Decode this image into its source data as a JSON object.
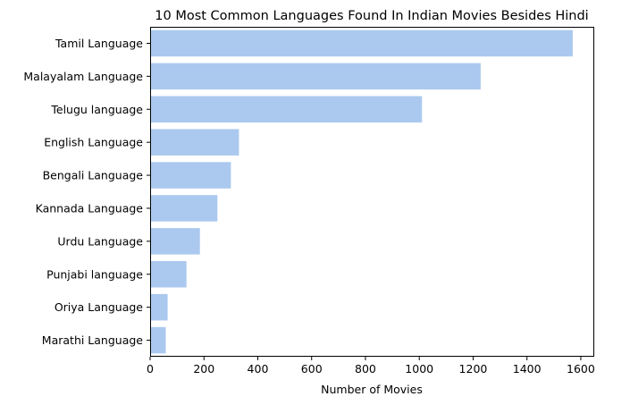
{
  "chart_data": {
    "type": "bar",
    "orientation": "horizontal",
    "title": "10 Most Common Languages Found In Indian Movies Besides Hindi",
    "xlabel": "Number of Movies",
    "ylabel": "",
    "categories": [
      "Tamil Language",
      "Malayalam Language",
      "Telugu language",
      "English Language",
      "Bengali Language",
      "Kannada Language",
      "Urdu Language",
      "Punjabi language",
      "Oriya Language",
      "Marathi Language"
    ],
    "values": [
      1570,
      1228,
      1010,
      330,
      300,
      250,
      185,
      135,
      65,
      58
    ],
    "xlim": [
      0,
      1650
    ],
    "xticks": [
      0,
      200,
      400,
      600,
      800,
      1000,
      1200,
      1400,
      1600
    ],
    "grid": false,
    "bar_color": "#abc9ef"
  }
}
